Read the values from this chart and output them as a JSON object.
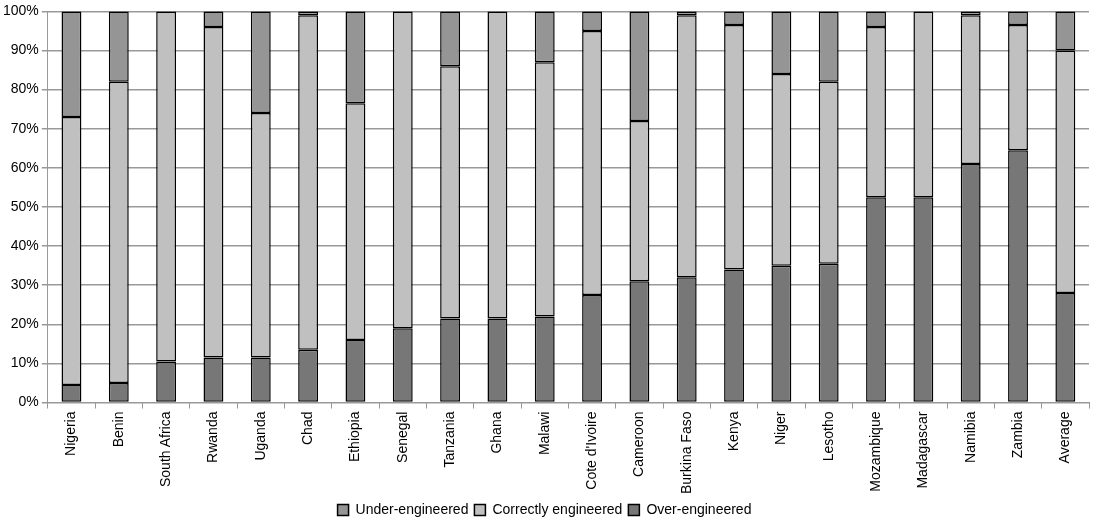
{
  "chart_data": {
    "type": "bar",
    "stacked": true,
    "categories": [
      "Nigeria",
      "Benin",
      "South Africa",
      "Rwanda",
      "Uganda",
      "Chad",
      "Ethiopia",
      "Senegal",
      "Tanzania",
      "Ghana",
      "Malawi",
      "Cote d'Ivoire",
      "Cameroon",
      "Burkina Faso",
      "Kenya",
      "Niger",
      "Lesotho",
      "Mozambique",
      "Madagascar",
      "Namibia",
      "Zambia",
      "Average"
    ],
    "series": [
      {
        "name": "Over-engineered",
        "color": "#777777",
        "values": [
          4.5,
          5,
          10.5,
          11.5,
          11.5,
          13.5,
          16,
          19,
          21.5,
          21.5,
          22,
          27.5,
          31,
          32,
          34,
          35,
          35.5,
          52.5,
          52.5,
          61,
          64.5,
          28
        ]
      },
      {
        "name": "Correctly engineered",
        "color": "#c0c0c0",
        "values": [
          68.5,
          77,
          89.5,
          84.5,
          62.5,
          85.5,
          60.5,
          81,
          64.5,
          78.5,
          65,
          67.5,
          41,
          67,
          62.5,
          49,
          46.5,
          43.5,
          47.5,
          38,
          32,
          62
        ]
      },
      {
        "name": "Under-engineered",
        "color": "#959595",
        "values": [
          27,
          18,
          0,
          4,
          26,
          1,
          23.5,
          0,
          14,
          0,
          13,
          5,
          28,
          1,
          3.5,
          16,
          18,
          4,
          0,
          1,
          3.5,
          10
        ]
      }
    ],
    "ylim": [
      0,
      100
    ],
    "yticks": [
      {
        "value": 0,
        "label": "0%"
      },
      {
        "value": 10,
        "label": "10%"
      },
      {
        "value": 20,
        "label": "20%"
      },
      {
        "value": 30,
        "label": "30%"
      },
      {
        "value": 40,
        "label": "40%"
      },
      {
        "value": 50,
        "label": "50%"
      },
      {
        "value": 60,
        "label": "60%"
      },
      {
        "value": 70,
        "label": "70%"
      },
      {
        "value": 80,
        "label": "80%"
      },
      {
        "value": 90,
        "label": "90%"
      },
      {
        "value": 100,
        "label": "100%"
      }
    ],
    "grid": "y",
    "legend": "bottom"
  }
}
